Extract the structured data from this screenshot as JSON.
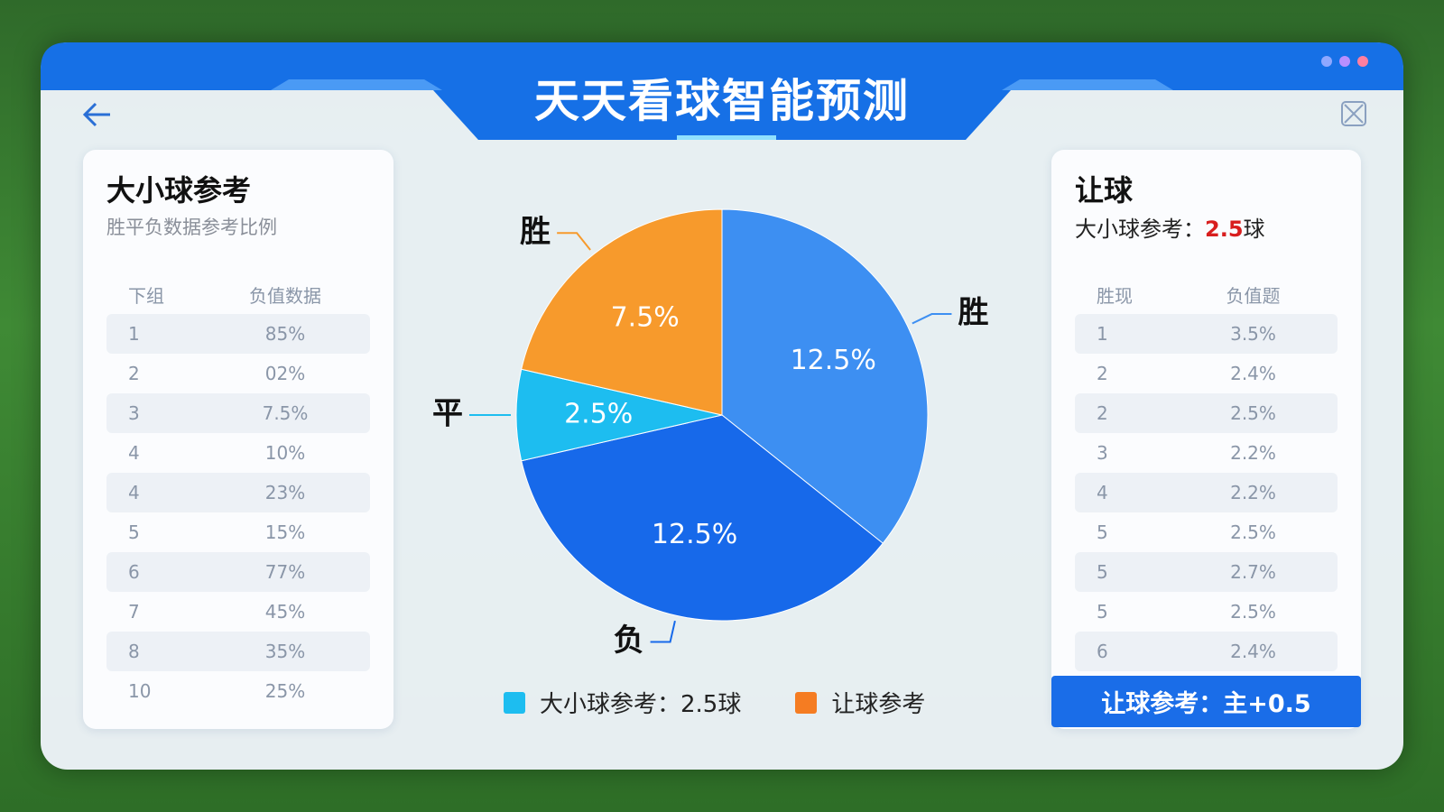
{
  "header": {
    "title": "天天看球智能预测"
  },
  "left_panel": {
    "title": "大小球参考",
    "subtitle": "胜平负数据参考比例",
    "table": {
      "headers": [
        "下组",
        "负值数据"
      ],
      "rows": [
        [
          "1",
          "85%"
        ],
        [
          "2",
          "02%"
        ],
        [
          "3",
          "7.5%"
        ],
        [
          "4",
          "10%"
        ],
        [
          "4",
          "23%"
        ],
        [
          "5",
          "15%"
        ],
        [
          "6",
          "77%"
        ],
        [
          "7",
          "45%"
        ],
        [
          "8",
          "35%"
        ],
        [
          "10",
          "25%"
        ]
      ]
    }
  },
  "chart_data": {
    "type": "pie",
    "categories": [
      "胜",
      "负",
      "平",
      "胜"
    ],
    "values": [
      12.5,
      12.5,
      2.5,
      7.5
    ],
    "value_labels": [
      "12.5%",
      "12.5%",
      "2.5%",
      "7.5%"
    ],
    "colors": [
      "#3d8ff2",
      "#1769ea",
      "#1dbdf0",
      "#f79a2c"
    ],
    "legend": [
      {
        "label": "大小球参考：2.5球",
        "color": "#1dbdf0"
      },
      {
        "label": "让球参考",
        "color": "#f57c22"
      }
    ]
  },
  "right_panel": {
    "title": "让球",
    "subtitle": [
      "大小球参考：",
      "2.5",
      "球"
    ],
    "table": {
      "headers": [
        "胜现",
        "负值题"
      ],
      "rows": [
        [
          "1",
          "3.5%"
        ],
        [
          "2",
          "2.4%"
        ],
        [
          "2",
          "2.5%"
        ],
        [
          "3",
          "2.2%"
        ],
        [
          "4",
          "2.2%"
        ],
        [
          "5",
          "2.5%"
        ],
        [
          "5",
          "2.7%"
        ],
        [
          "5",
          "2.5%"
        ],
        [
          "6",
          "2.4%"
        ]
      ]
    },
    "button": "让球参考：主+0.5"
  }
}
